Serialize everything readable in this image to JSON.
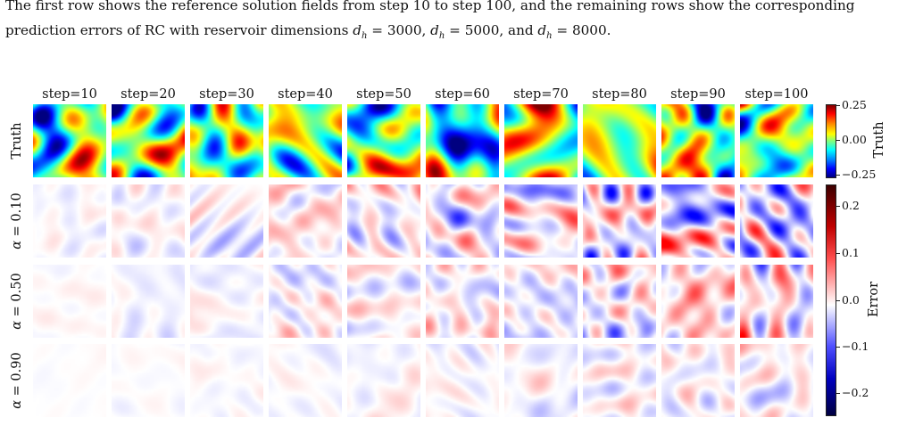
{
  "caption": {
    "line1": "The first row shows the reference solution fields from step 10 to step 100, and the remaining rows show the corresponding",
    "line2_pre": "prediction errors of RC with reservoir dimensions ",
    "line2_eq1": "d",
    "line2_sub1": "h",
    "line2_v1": " = 3000, ",
    "line2_v2": " = 5000, and ",
    "line2_v3": " = 8000."
  },
  "figure": {
    "columns": [
      "step=10",
      "step=20",
      "step=30",
      "step=40",
      "step=50",
      "step=60",
      "step=70",
      "step=80",
      "step=90",
      "step=100"
    ],
    "rows": [
      {
        "label": "Truth",
        "kind": "truth"
      },
      {
        "label_sym": "α",
        "label_val": " = 0.10",
        "kind": "error",
        "level": 0.45
      },
      {
        "label_sym": "α",
        "label_val": " = 0.50",
        "kind": "error",
        "level": 0.3
      },
      {
        "label_sym": "α",
        "label_val": " = 0.90",
        "kind": "error",
        "level": 0.15
      }
    ],
    "colorbar_truth": {
      "label": "Truth",
      "ticks": [
        "0.25",
        "0.00",
        "−0.25"
      ],
      "colormap": "jet"
    },
    "colorbar_error": {
      "label": "Error",
      "ticks": [
        "0.2",
        "0.1",
        "0.0",
        "−0.1",
        "−0.2"
      ],
      "colormap": "seismic"
    }
  }
}
